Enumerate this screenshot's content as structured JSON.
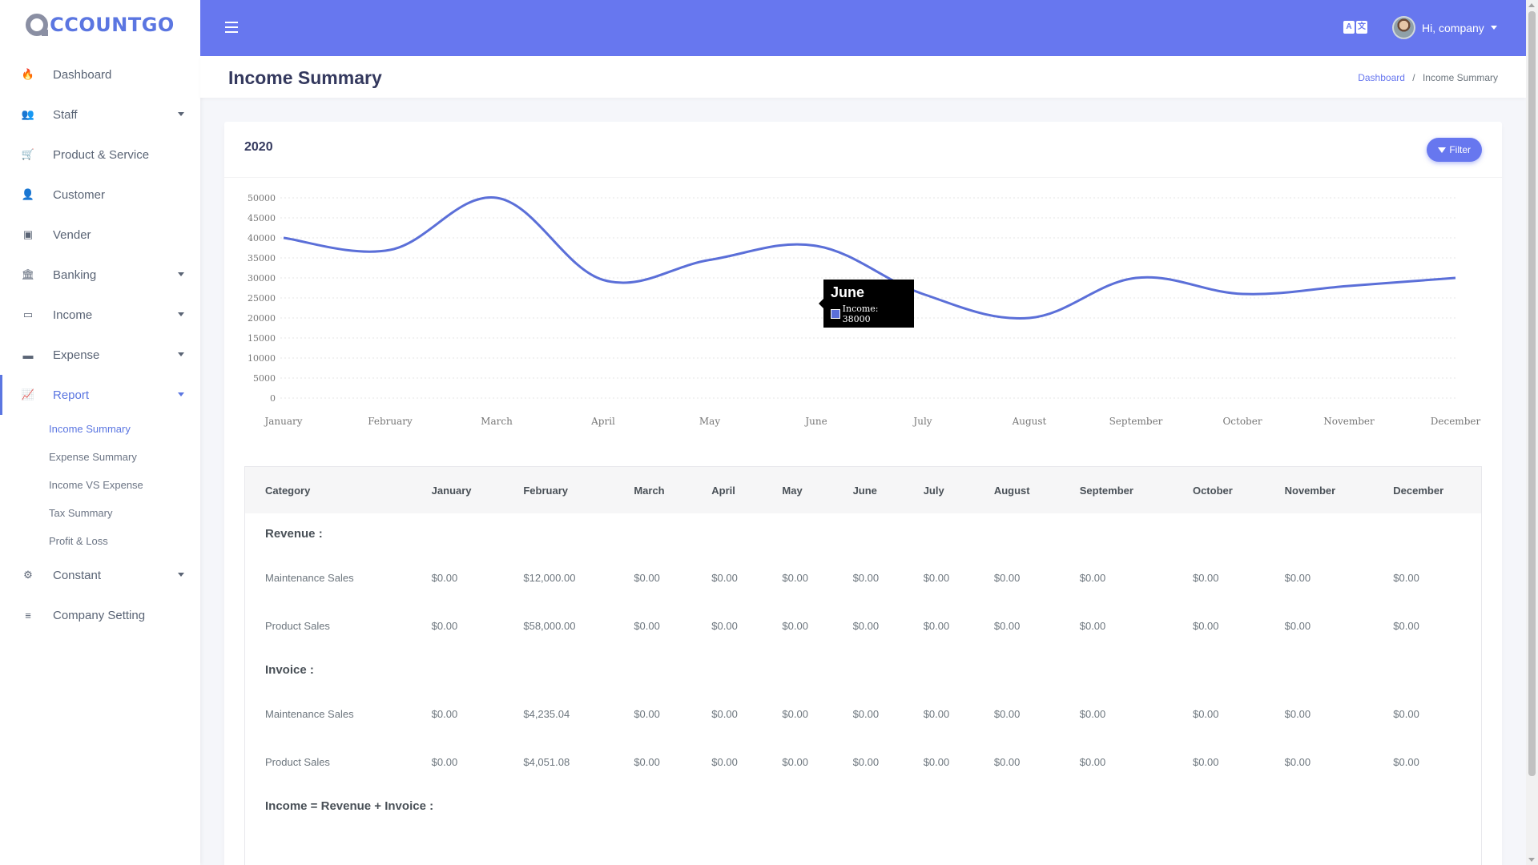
{
  "app": {
    "name": "CCOUNTGO"
  },
  "sidebar": {
    "items": [
      {
        "label": "Dashboard",
        "icon": "fire-icon",
        "glyph": "🔥"
      },
      {
        "label": "Staff",
        "icon": "users-icon",
        "glyph": "👥"
      },
      {
        "label": "Product & Service",
        "icon": "cart-icon",
        "glyph": "🛒"
      },
      {
        "label": "Customer",
        "icon": "user-icon",
        "glyph": "👤"
      },
      {
        "label": "Vender",
        "icon": "sticky-note-icon",
        "glyph": "▣"
      },
      {
        "label": "Banking",
        "icon": "bank-icon",
        "glyph": "🏛"
      },
      {
        "label": "Income",
        "icon": "money-bill-icon",
        "glyph": "▭"
      },
      {
        "label": "Expense",
        "icon": "money-icon",
        "glyph": "▬"
      },
      {
        "label": "Report",
        "icon": "chart-area-icon",
        "glyph": "📈"
      },
      {
        "label": "Constant",
        "icon": "cog-icon",
        "glyph": "⚙"
      },
      {
        "label": "Company Setting",
        "icon": "sliders-icon",
        "glyph": "≡"
      }
    ],
    "report_sub": [
      "Income Summary",
      "Expense Summary",
      "Income VS Expense",
      "Tax Summary",
      "Profit & Loss"
    ]
  },
  "topbar": {
    "user_greeting": "Hi, company",
    "lang_a": "A",
    "lang_b": "文"
  },
  "page": {
    "title": "Income Summary",
    "breadcrumb": {
      "home": "Dashboard",
      "sep": "/",
      "current": "Income Summary"
    }
  },
  "card": {
    "year": "2020",
    "filter_label": "Filter"
  },
  "tooltip": {
    "title": "June",
    "row": "Income: 38000"
  },
  "chart_data": {
    "type": "line",
    "categories": [
      "January",
      "February",
      "March",
      "April",
      "May",
      "June",
      "July",
      "August",
      "September",
      "October",
      "November",
      "December"
    ],
    "series": [
      {
        "name": "Income",
        "values": [
          40000,
          37000,
          50000,
          29500,
          34500,
          38000,
          26000,
          20000,
          30000,
          26000,
          28000,
          30000
        ]
      }
    ],
    "ylim": [
      0,
      50000
    ],
    "yticks": [
      0,
      5000,
      10000,
      15000,
      20000,
      25000,
      30000,
      35000,
      40000,
      45000,
      50000
    ],
    "color": "#5b6fd8",
    "grid": true
  },
  "table": {
    "headers": [
      "Category",
      "January",
      "February",
      "March",
      "April",
      "May",
      "June",
      "July",
      "August",
      "September",
      "October",
      "November",
      "December"
    ],
    "sections": [
      {
        "title": "Revenue :",
        "rows": [
          {
            "category": "Maintenance Sales",
            "values": [
              "$0.00",
              "$12,000.00",
              "$0.00",
              "$0.00",
              "$0.00",
              "$0.00",
              "$0.00",
              "$0.00",
              "$0.00",
              "$0.00",
              "$0.00",
              "$0.00"
            ]
          },
          {
            "category": "Product Sales",
            "values": [
              "$0.00",
              "$58,000.00",
              "$0.00",
              "$0.00",
              "$0.00",
              "$0.00",
              "$0.00",
              "$0.00",
              "$0.00",
              "$0.00",
              "$0.00",
              "$0.00"
            ]
          }
        ]
      },
      {
        "title": "Invoice :",
        "rows": [
          {
            "category": "Maintenance Sales",
            "values": [
              "$0.00",
              "$4,235.04",
              "$0.00",
              "$0.00",
              "$0.00",
              "$0.00",
              "$0.00",
              "$0.00",
              "$0.00",
              "$0.00",
              "$0.00",
              "$0.00"
            ]
          },
          {
            "category": "Product Sales",
            "values": [
              "$0.00",
              "$4,051.08",
              "$0.00",
              "$0.00",
              "$0.00",
              "$0.00",
              "$0.00",
              "$0.00",
              "$0.00",
              "$0.00",
              "$0.00",
              "$0.00"
            ]
          }
        ]
      },
      {
        "title": "Income = Revenue + Invoice :",
        "rows": []
      }
    ]
  }
}
